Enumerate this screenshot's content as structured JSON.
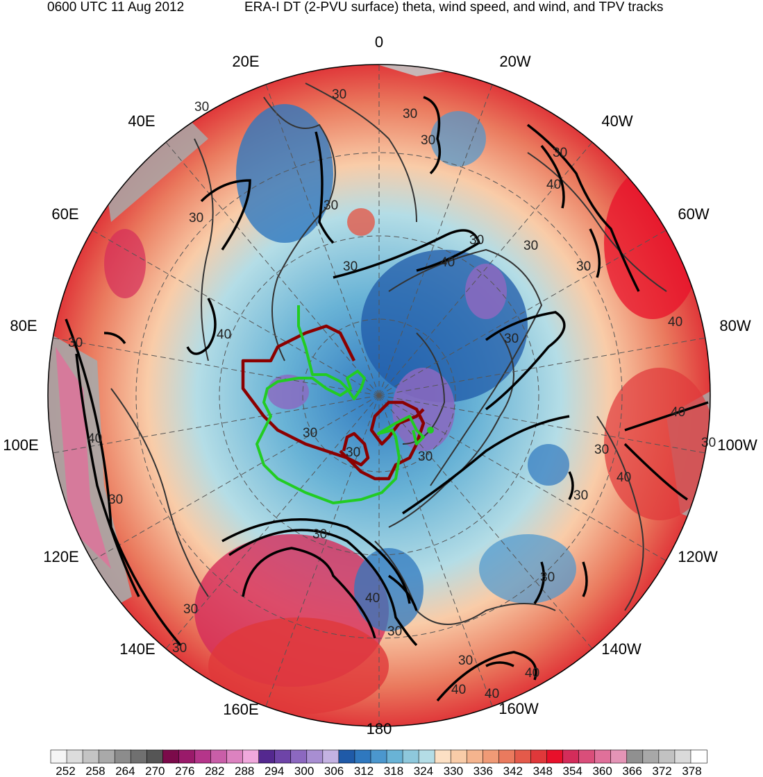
{
  "header": {
    "time_label": "0600 UTC 11 Aug 2012",
    "description": "ERA-I DT (2-PVU surface) theta, wind speed, and wind, and TPV tracks"
  },
  "map": {
    "projection": "north-polar-stereographic",
    "longitude_labels": [
      "0",
      "20W",
      "40W",
      "60W",
      "80W",
      "100W",
      "120W",
      "140W",
      "160W",
      "180",
      "160E",
      "140E",
      "120E",
      "100E",
      "80E",
      "60E",
      "40E",
      "20E"
    ],
    "contour_label_values": [
      "30",
      "40"
    ],
    "track_colors": {
      "primary": "#8b0000",
      "secondary": "#00cc00"
    }
  },
  "colorbar": {
    "tick_labels": [
      "252",
      "258",
      "264",
      "270",
      "276",
      "282",
      "288",
      "294",
      "300",
      "306",
      "312",
      "318",
      "324",
      "330",
      "336",
      "342",
      "348",
      "354",
      "360",
      "366",
      "372",
      "378"
    ],
    "colors": [
      "#f5f5f5",
      "#dcdcdc",
      "#c4c4c4",
      "#a9a9a9",
      "#8c8c8c",
      "#707070",
      "#555555",
      "#7b0a4a",
      "#9a1a6a",
      "#b5358a",
      "#c95ea8",
      "#dc82c0",
      "#f0a8dc",
      "#54288f",
      "#6e44a8",
      "#8c68c0",
      "#a88ed2",
      "#c4b2e2",
      "#1f5aa8",
      "#2f78bf",
      "#4b97ce",
      "#69b3d6",
      "#8ec8dc",
      "#b4dde6",
      "#fce0c4",
      "#f9cca8",
      "#f5b48e",
      "#f09a76",
      "#ea7a5e",
      "#e45a4a",
      "#e0383a",
      "#e8102a",
      "#d42c5a",
      "#da4e7a",
      "#e0709a",
      "#e494b6",
      "#909090",
      "#a8a8a8",
      "#c2c2c2",
      "#dadada",
      "#ffffff"
    ]
  }
}
